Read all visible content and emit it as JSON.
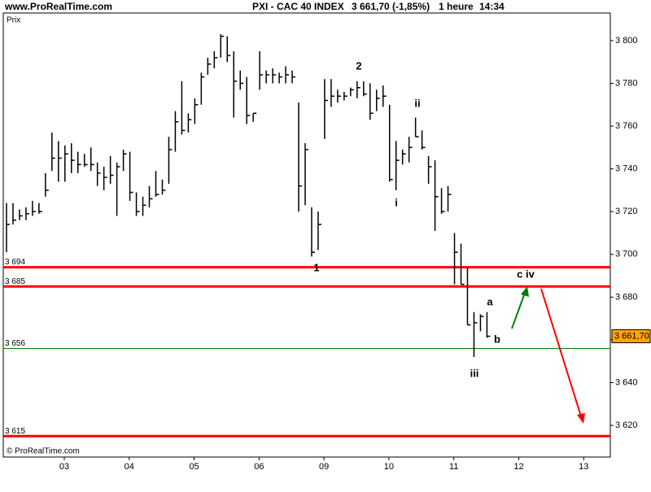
{
  "site": "www.ProRealTime.com",
  "copyright": "© ProRealTime.com",
  "chart_data": {
    "type": "ohlc",
    "title": "PXI - CAC 40 INDEX",
    "price_text": "3 661,70 (-1,85%)",
    "interval": "1 heure",
    "time": "14:34",
    "y_label": "Prix",
    "color": "#000000",
    "x": [
      -0.89,
      -0.79,
      -0.69,
      -0.59,
      -0.49,
      -0.39,
      -0.29,
      -0.19,
      -0.09,
      0.01,
      0.11,
      0.21,
      0.31,
      0.41,
      0.51,
      0.61,
      0.71,
      0.81,
      0.91,
      1.01,
      1.11,
      1.21,
      1.31,
      1.41,
      1.51,
      1.61,
      1.71,
      1.81,
      1.91,
      2.01,
      2.11,
      2.21,
      2.31,
      2.41,
      2.51,
      2.61,
      2.71,
      2.81,
      2.91,
      3.01,
      3.11,
      3.21,
      3.31,
      3.41,
      3.51,
      3.61,
      3.71,
      3.81,
      3.91,
      4.01,
      4.11,
      4.21,
      4.31,
      4.41,
      4.51,
      4.61,
      4.71,
      4.81,
      4.91,
      5.01,
      5.11,
      5.21,
      5.31,
      5.41,
      5.51,
      5.61,
      5.71,
      5.81,
      5.91,
      6.01,
      6.11,
      6.21,
      6.31,
      6.41,
      6.51
    ],
    "high": [
      3724,
      3724,
      3721,
      3722,
      3725,
      3724,
      3738,
      3757,
      3753,
      3751,
      3752,
      3748,
      3747,
      3750,
      3743,
      3741,
      3746,
      3743,
      3749,
      3748,
      3729,
      3727,
      3732,
      3739,
      3735,
      3755,
      3767,
      3781,
      3766,
      3773,
      3785,
      3792,
      3795,
      3803,
      3802,
      3795,
      3786,
      3783,
      3766,
      3795,
      3786,
      3787,
      3785,
      3788,
      3786,
      3771,
      3752,
      3722,
      3720,
      3782,
      3782,
      3777,
      3776,
      3778,
      3781,
      3781,
      3780,
      3777,
      3779,
      3770,
      3753,
      3749,
      3755,
      3764,
      3758,
      3746,
      3744,
      3731,
      3732,
      3710,
      3705,
      3694,
      3673,
      3672,
      3673
    ],
    "low": [
      3701,
      3714,
      3716,
      3716,
      3718,
      3719,
      3727,
      3739,
      3734,
      3734,
      3738,
      3738,
      3741,
      3739,
      3732,
      3730,
      3733,
      3718,
      3739,
      3725,
      3718,
      3718,
      3722,
      3727,
      3728,
      3733,
      3748,
      3756,
      3757,
      3761,
      3770,
      3784,
      3787,
      3792,
      3790,
      3764,
      3777,
      3761,
      3762,
      3777,
      3780,
      3780,
      3780,
      3780,
      3780,
      3720,
      3723,
      3699,
      3702,
      3754,
      3769,
      3771,
      3772,
      3774,
      3773,
      3774,
      3763,
      3767,
      3769,
      3734,
      3730,
      3742,
      3743,
      3755,
      3749,
      3733,
      3711,
      3719,
      3720,
      3686,
      3686,
      3667,
      3652,
      3664,
      3661
    ],
    "close": [
      3714,
      3716,
      3718,
      3719,
      3720,
      3720,
      3730,
      3745,
      3745,
      3747,
      3744,
      3742,
      3742,
      3742,
      3738,
      3736,
      3737,
      3741,
      3747,
      3729,
      3720,
      3723,
      3726,
      3728,
      3730,
      3749,
      3762,
      3758,
      3763,
      3770,
      3783,
      3789,
      3792,
      3802,
      3793,
      3781,
      3780,
      3765,
      3766,
      3784,
      3784,
      3784,
      3783,
      3784,
      3783,
      3732,
      3749,
      3701,
      3714,
      3772,
      3774,
      3774,
      3774,
      3777,
      3778,
      3775,
      3766,
      3773,
      3774,
      3735,
      3744,
      3747,
      3750,
      3755,
      3750,
      3741,
      3727,
      3720,
      3728,
      3701,
      3686,
      3667,
      3668,
      3671,
      3661.7
    ],
    "xlim": [
      -0.94,
      8.41
    ],
    "ylim": [
      3605.2,
      3812.9
    ],
    "xticks": [
      {
        "value": 0,
        "label": "03"
      },
      {
        "value": 1,
        "label": "04"
      },
      {
        "value": 2,
        "label": "05"
      },
      {
        "value": 3,
        "label": "06"
      },
      {
        "value": 4,
        "label": "09"
      },
      {
        "value": 5,
        "label": "10"
      },
      {
        "value": 6,
        "label": "11"
      },
      {
        "value": 7,
        "label": "12"
      },
      {
        "value": 8,
        "label": "13"
      }
    ],
    "yticks": [
      {
        "value": 3620,
        "label": "3 620"
      },
      {
        "value": 3640,
        "label": "3 640"
      },
      {
        "value": 3660,
        "label": "3 660"
      },
      {
        "value": 3680,
        "label": "3 680"
      },
      {
        "value": 3700,
        "label": "3 700"
      },
      {
        "value": 3720,
        "label": "3 720"
      },
      {
        "value": 3740,
        "label": "3 740"
      },
      {
        "value": 3760,
        "label": "3 760"
      },
      {
        "value": 3780,
        "label": "3 780"
      },
      {
        "value": 3800,
        "label": "3 800"
      }
    ],
    "levels": [
      {
        "value": 3694,
        "label": "3 694",
        "color": "#ff0000"
      },
      {
        "value": 3685,
        "label": "3 685",
        "color": "#ff0000"
      },
      {
        "value": 3656,
        "label": "3 656",
        "color": "#008000"
      },
      {
        "value": 3615,
        "label": "3 615",
        "color": "#ff0000"
      }
    ],
    "last_price": {
      "value": 3661.7,
      "label": "3 661,70",
      "color": "#ffa500"
    },
    "annotations": [
      "1",
      "2",
      "i",
      "ii",
      "iii",
      "a",
      "b",
      "c iv"
    ]
  }
}
